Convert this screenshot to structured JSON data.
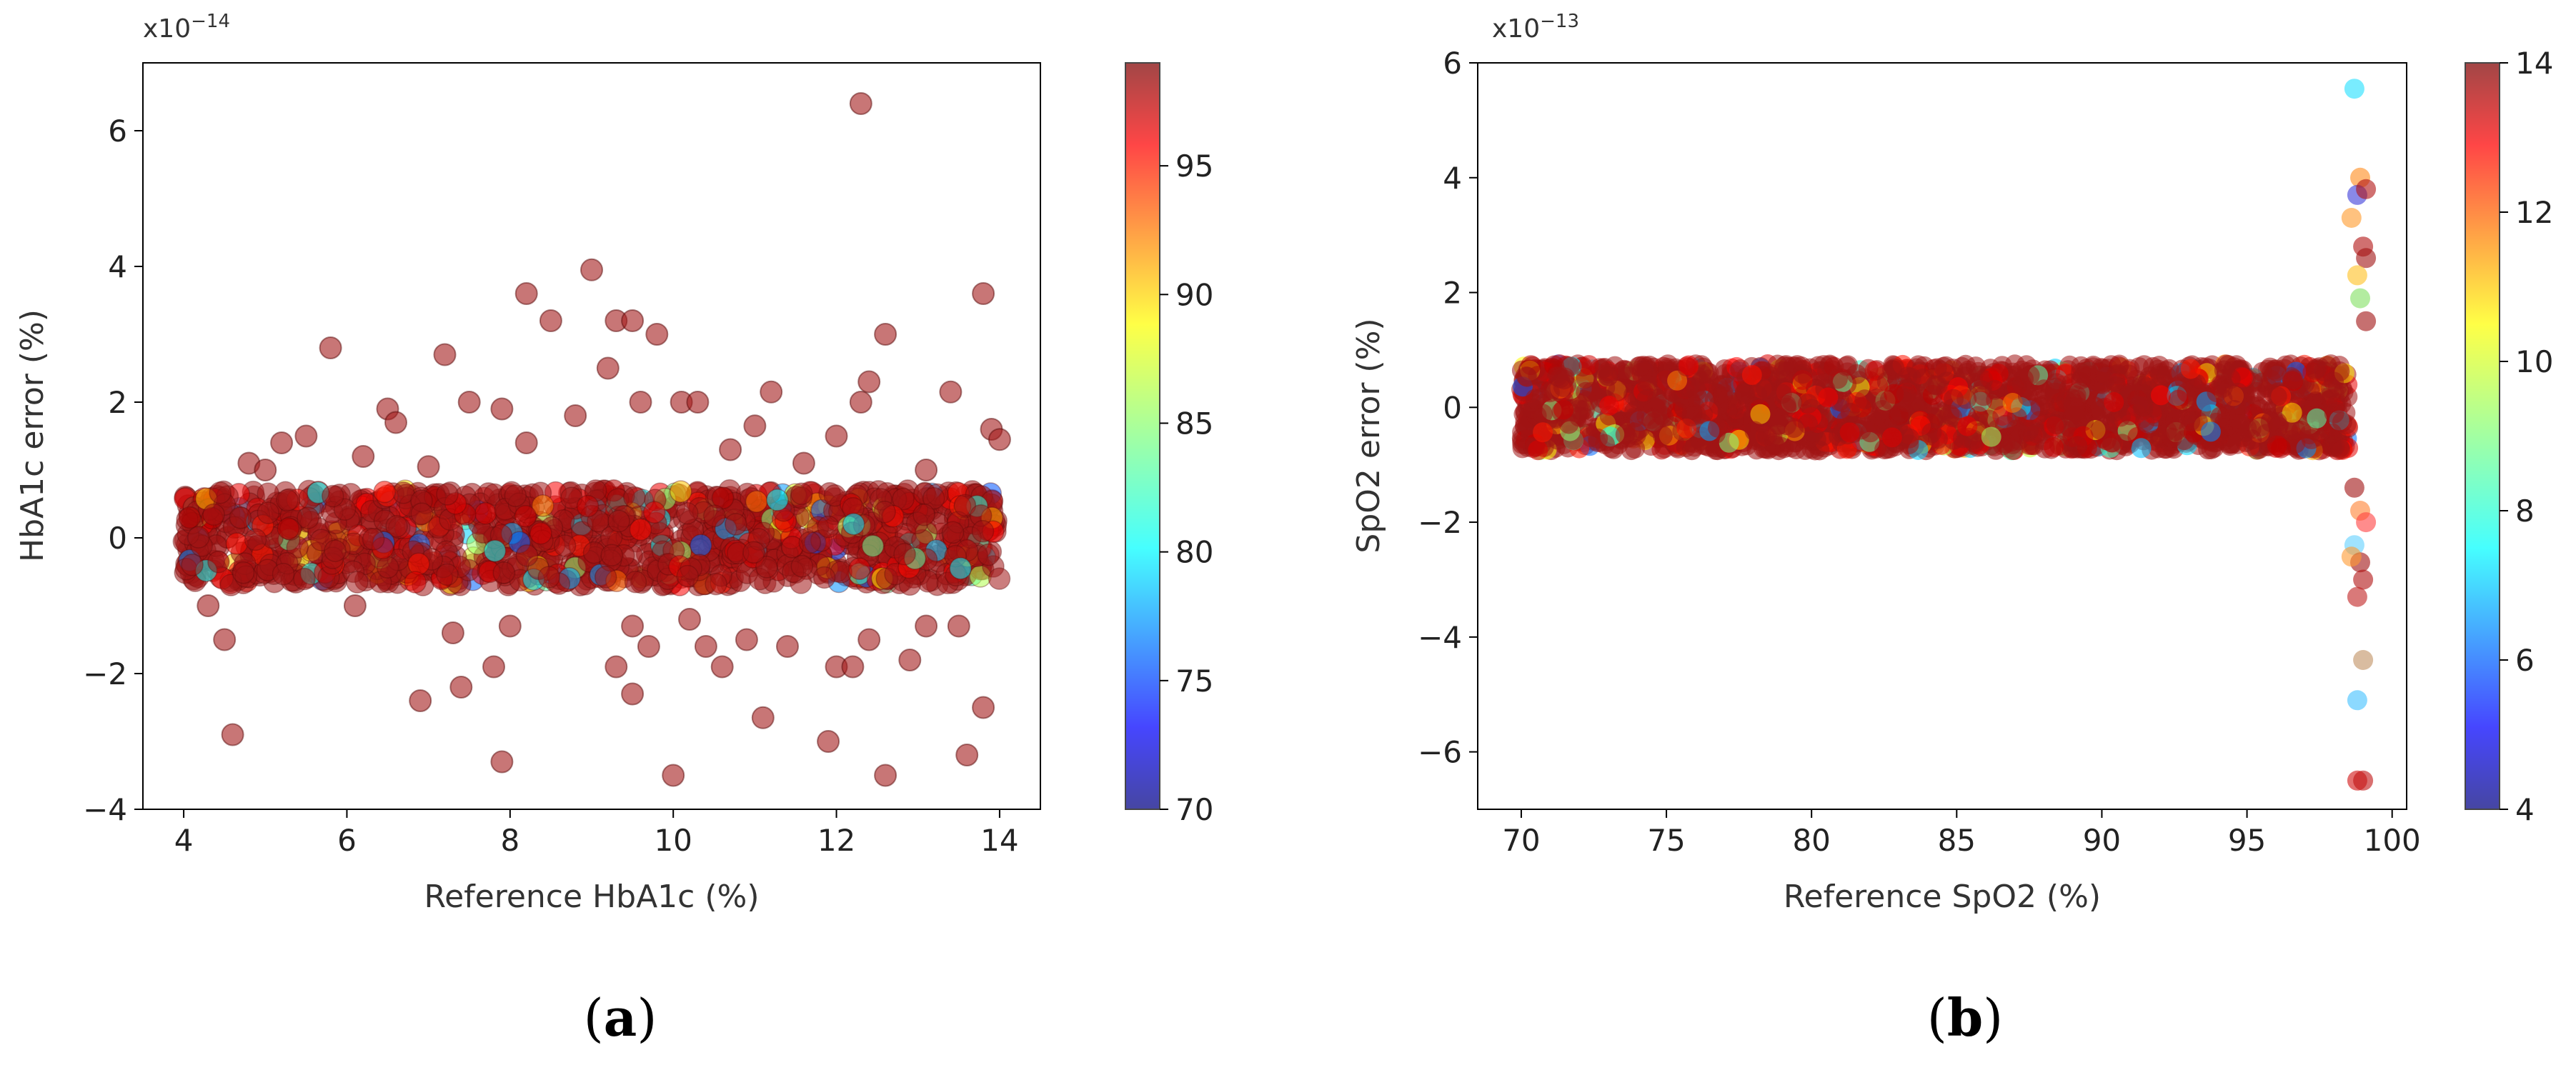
{
  "chart_data": [
    {
      "id": "a",
      "type": "scatter",
      "panel_label": "a",
      "xlabel": "Reference HbA1c (%)",
      "ylabel": "HbA1c error (%)",
      "multiplier": "x10",
      "multiplier_exp": "−14",
      "xlim": [
        3.5,
        14.5
      ],
      "ylim": [
        -4,
        7
      ],
      "xticks": [
        4,
        6,
        8,
        10,
        12,
        14
      ],
      "yticks": [
        -4,
        -2,
        0,
        2,
        4,
        6
      ],
      "colorbar": {
        "min": 70,
        "max": 99,
        "ticks": [
          70,
          75,
          80,
          85,
          90,
          95
        ],
        "colormap": "jet",
        "alpha": 0.6
      },
      "band": {
        "x_range": [
          4,
          14
        ],
        "y_center": 0,
        "y_half_width": 0.7,
        "density": "dense",
        "dominant_color": "#a01414"
      },
      "series": [
        {
          "points": [
            [
              12.3,
              6.4
            ],
            [
              9.0,
              3.95
            ],
            [
              8.2,
              3.6
            ],
            [
              13.8,
              3.6
            ],
            [
              8.5,
              3.2
            ],
            [
              9.3,
              3.2
            ],
            [
              9.5,
              3.2
            ],
            [
              9.8,
              3.0
            ],
            [
              12.6,
              3.0
            ],
            [
              5.8,
              2.8
            ],
            [
              7.2,
              2.7
            ],
            [
              9.2,
              2.5
            ],
            [
              12.4,
              2.3
            ],
            [
              11.2,
              2.15
            ],
            [
              13.4,
              2.15
            ],
            [
              7.5,
              2.0
            ],
            [
              9.6,
              2.0
            ],
            [
              10.1,
              2.0
            ],
            [
              10.3,
              2.0
            ],
            [
              12.3,
              2.0
            ],
            [
              6.5,
              1.9
            ],
            [
              7.9,
              1.9
            ],
            [
              8.8,
              1.8
            ],
            [
              6.6,
              1.7
            ],
            [
              11.0,
              1.65
            ],
            [
              13.9,
              1.6
            ],
            [
              5.5,
              1.5
            ],
            [
              12.0,
              1.5
            ],
            [
              14.0,
              1.45
            ],
            [
              5.2,
              1.4
            ],
            [
              8.2,
              1.4
            ],
            [
              10.7,
              1.3
            ],
            [
              6.2,
              1.2
            ],
            [
              4.8,
              1.1
            ],
            [
              5.0,
              1.0
            ],
            [
              7.0,
              1.05
            ],
            [
              11.6,
              1.1
            ],
            [
              13.1,
              1.0
            ],
            [
              4.3,
              -1.0
            ],
            [
              7.3,
              -1.4
            ],
            [
              8.0,
              -1.3
            ],
            [
              9.5,
              -1.3
            ],
            [
              13.1,
              -1.3
            ],
            [
              13.5,
              -1.3
            ],
            [
              4.5,
              -1.5
            ],
            [
              9.7,
              -1.6
            ],
            [
              11.4,
              -1.6
            ],
            [
              6.1,
              -1.0
            ],
            [
              10.2,
              -1.2
            ],
            [
              10.9,
              -1.5
            ],
            [
              12.4,
              -1.5
            ],
            [
              10.4,
              -1.6
            ],
            [
              12.9,
              -1.8
            ],
            [
              7.8,
              -1.9
            ],
            [
              9.3,
              -1.9
            ],
            [
              10.6,
              -1.9
            ],
            [
              12.0,
              -1.9
            ],
            [
              12.2,
              -1.9
            ],
            [
              7.4,
              -2.2
            ],
            [
              9.5,
              -2.3
            ],
            [
              6.9,
              -2.4
            ],
            [
              13.8,
              -2.5
            ],
            [
              11.1,
              -2.65
            ],
            [
              4.6,
              -2.9
            ],
            [
              11.9,
              -3.0
            ],
            [
              13.6,
              -3.2
            ],
            [
              7.9,
              -3.3
            ],
            [
              10.0,
              -3.5
            ],
            [
              12.6,
              -3.5
            ]
          ]
        }
      ]
    },
    {
      "id": "b",
      "type": "scatter",
      "panel_label": "b",
      "xlabel": "Reference SpO2 (%)",
      "ylabel": "SpO2 error (%)",
      "multiplier": "x10",
      "multiplier_exp": "−13",
      "xlim": [
        68.5,
        100.5
      ],
      "ylim": [
        -7,
        6
      ],
      "xticks": [
        70,
        75,
        80,
        85,
        90,
        95,
        100
      ],
      "yticks": [
        -6,
        -4,
        -2,
        0,
        2,
        4,
        6
      ],
      "colorbar": {
        "min": 4,
        "max": 14,
        "ticks": [
          4,
          6,
          8,
          10,
          12,
          14
        ],
        "colormap": "jet",
        "alpha": 0.6
      },
      "band": {
        "x_range": [
          70,
          98.5
        ],
        "y_center": 0,
        "y_half_width": 0.75,
        "density": "very dense",
        "dominant_color": "#a01414"
      },
      "series": [
        {
          "points": [
            [
              98.7,
              5.55
            ],
            [
              98.9,
              4.0
            ],
            [
              98.8,
              3.7
            ],
            [
              99.1,
              3.8
            ],
            [
              98.6,
              3.3
            ],
            [
              99.0,
              2.8
            ],
            [
              99.1,
              2.6
            ],
            [
              98.8,
              2.3
            ],
            [
              98.9,
              1.9
            ],
            [
              99.1,
              1.5
            ],
            [
              98.7,
              -1.4
            ],
            [
              98.9,
              -1.8
            ],
            [
              99.1,
              -2.0
            ],
            [
              98.7,
              -2.4
            ],
            [
              98.9,
              -2.7
            ],
            [
              98.6,
              -2.6
            ],
            [
              99.0,
              -3.0
            ],
            [
              98.8,
              -3.3
            ],
            [
              99.0,
              -4.4
            ],
            [
              98.8,
              -5.1
            ],
            [
              98.8,
              -6.5
            ],
            [
              99.0,
              -6.5
            ]
          ]
        }
      ]
    }
  ]
}
